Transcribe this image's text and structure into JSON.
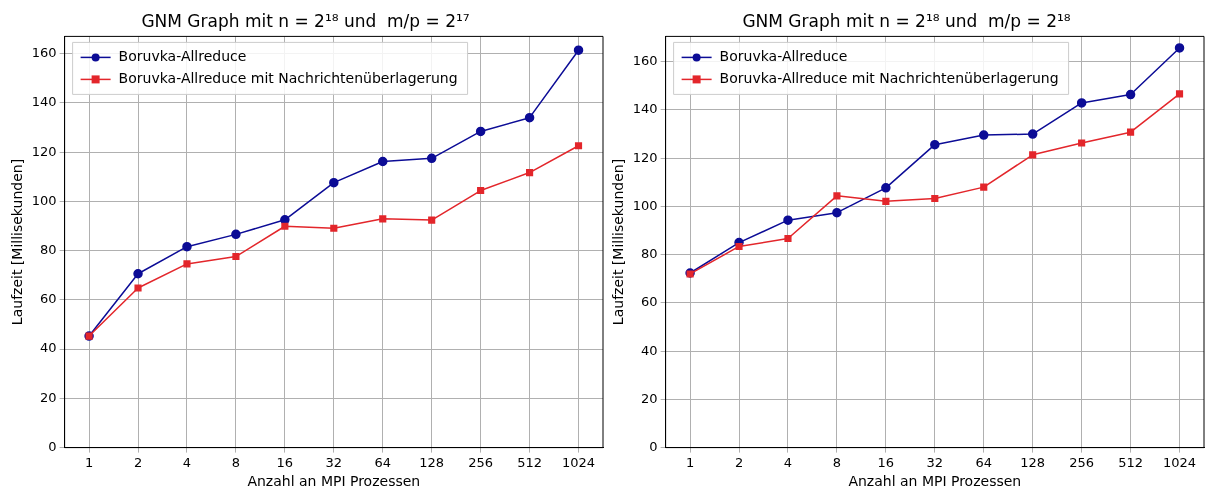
{
  "chart_data": [
    {
      "type": "line",
      "title": "GNM Graph mit n = 2¹⁸ und  m/p = 2¹⁷",
      "xlabel": "Anzahl an MPI Prozessen",
      "ylabel": "Laufzeit [Millisekunden]",
      "categories": [
        "1",
        "2",
        "4",
        "8",
        "16",
        "32",
        "64",
        "128",
        "256",
        "512",
        "1024"
      ],
      "series": [
        {
          "name": "Boruvka-Allreduce",
          "color": "#0c0c96",
          "marker": "circle",
          "values": [
            45.3,
            70.6,
            81.6,
            86.6,
            92.5,
            107.6,
            116.2,
            117.5,
            128.4,
            134,
            161.4
          ]
        },
        {
          "name": "Boruvka-Allreduce mit Nachrichtenüberlagerung",
          "color": "#e3262b",
          "marker": "square",
          "values": [
            45.3,
            64.8,
            74.6,
            77.6,
            89.9,
            89.1,
            92.9,
            92.4,
            104.4,
            111.7,
            122.6
          ]
        }
      ],
      "ylim": [
        0,
        167
      ],
      "yticks": [
        0,
        20,
        40,
        60,
        80,
        100,
        120,
        140,
        160
      ],
      "grid": true,
      "legend": "top left"
    },
    {
      "type": "line",
      "title": "GNM Graph mit n = 2¹⁸ und  m/p = 2¹⁸",
      "xlabel": "Anzahl an MPI Prozessen",
      "ylabel": "Laufzeit [Millisekunden]",
      "categories": [
        "1",
        "2",
        "4",
        "8",
        "16",
        "32",
        "64",
        "128",
        "256",
        "512",
        "1024"
      ],
      "series": [
        {
          "name": "Boruvka-Allreduce",
          "color": "#0c0c96",
          "marker": "circle",
          "values": [
            72.4,
            85,
            94.3,
            97.4,
            107.7,
            125.6,
            129.6,
            130,
            142.9,
            146.4,
            165.7
          ]
        },
        {
          "name": "Boruvka-Allreduce mit Nachrichtenüberlagerung",
          "color": "#e3262b",
          "marker": "square",
          "values": [
            72,
            83.4,
            86.7,
            104.4,
            102.1,
            103.3,
            108,
            121.4,
            126.3,
            130.8,
            146.7
          ]
        }
      ],
      "ylim": [
        0,
        170.5
      ],
      "yticks": [
        0,
        20,
        40,
        60,
        80,
        100,
        120,
        140,
        160
      ],
      "grid": true,
      "legend": "top left"
    }
  ]
}
